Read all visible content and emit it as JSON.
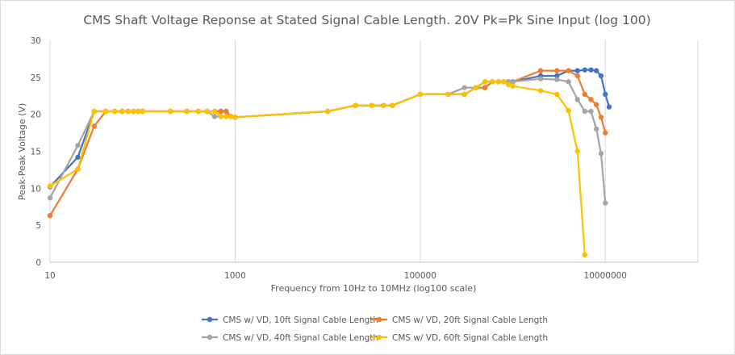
{
  "chart_data": {
    "type": "line",
    "title": "CMS Shaft Voltage Reponse at Stated Signal Cable Length. 20V Pk=Pk Sine Input (log 100)",
    "xlabel": "Frequency from 10Hz to 10MHz (log100 scale)",
    "ylabel": "Peak-Peak Voltage (V)",
    "xscale": "log100",
    "xlim": [
      10,
      100000000
    ],
    "ylim": [
      0,
      30
    ],
    "x_ticks": [
      10,
      1000,
      100000,
      10000000
    ],
    "x_tick_labels": [
      "10",
      "1000",
      "100000",
      "10000000"
    ],
    "y_ticks": [
      0,
      5,
      10,
      15,
      20,
      25,
      30
    ],
    "y_tick_labels": [
      "0",
      "5",
      "10",
      "15",
      "20",
      "25",
      "30"
    ],
    "grid": "vertical",
    "legend_position": "bottom",
    "series": [
      {
        "name": "CMS w/ VD, 10ft Signal Cable Length",
        "color": "#4472C4",
        "points": [
          [
            10,
            10.2
          ],
          [
            20,
            14.2
          ],
          [
            30,
            20.4
          ],
          [
            40,
            20.4
          ],
          [
            50,
            20.4
          ],
          [
            60,
            20.4
          ],
          [
            70,
            20.4
          ],
          [
            80,
            20.4
          ],
          [
            90,
            20.4
          ],
          [
            100,
            20.4
          ],
          [
            200,
            20.4
          ],
          [
            300,
            20.4
          ],
          [
            400,
            20.4
          ],
          [
            500,
            20.4
          ],
          [
            600,
            20.4
          ],
          [
            700,
            20.4
          ],
          [
            800,
            20.4
          ],
          [
            900,
            19.7
          ],
          [
            1000,
            19.6
          ],
          [
            10000,
            20.4
          ],
          [
            20000,
            21.2
          ],
          [
            30000,
            21.2
          ],
          [
            40000,
            21.2
          ],
          [
            50000,
            21.2
          ],
          [
            100000,
            22.7
          ],
          [
            200000,
            22.7
          ],
          [
            300000,
            22.7
          ],
          [
            400000,
            23.6
          ],
          [
            500000,
            23.6
          ],
          [
            600000,
            24.4
          ],
          [
            700000,
            24.4
          ],
          [
            800000,
            24.4
          ],
          [
            900000,
            24.4
          ],
          [
            1000000,
            24.4
          ],
          [
            2000000,
            25.2
          ],
          [
            3000000,
            25.2
          ],
          [
            4000000,
            25.9
          ],
          [
            5000000,
            25.9
          ],
          [
            6000000,
            26.0
          ],
          [
            7000000,
            26.0
          ],
          [
            8000000,
            25.9
          ],
          [
            9000000,
            25.2
          ],
          [
            10000000,
            22.7
          ],
          [
            11000000,
            21.0
          ]
        ]
      },
      {
        "name": "CMS w/ VD, 20ft Signal Cable Length",
        "color": "#ED7D31",
        "points": [
          [
            10,
            6.3
          ],
          [
            20,
            12.6
          ],
          [
            30,
            18.4
          ],
          [
            40,
            20.4
          ],
          [
            50,
            20.4
          ],
          [
            60,
            20.4
          ],
          [
            70,
            20.4
          ],
          [
            80,
            20.4
          ],
          [
            90,
            20.4
          ],
          [
            100,
            20.4
          ],
          [
            200,
            20.4
          ],
          [
            300,
            20.4
          ],
          [
            400,
            20.4
          ],
          [
            500,
            20.4
          ],
          [
            600,
            20.4
          ],
          [
            700,
            20.4
          ],
          [
            800,
            20.4
          ],
          [
            900,
            19.7
          ],
          [
            1000,
            19.6
          ],
          [
            10000,
            20.4
          ],
          [
            20000,
            21.2
          ],
          [
            30000,
            21.2
          ],
          [
            40000,
            21.2
          ],
          [
            50000,
            21.2
          ],
          [
            100000,
            22.7
          ],
          [
            200000,
            22.7
          ],
          [
            300000,
            22.7
          ],
          [
            400000,
            23.6
          ],
          [
            500000,
            23.6
          ],
          [
            600000,
            24.4
          ],
          [
            700000,
            24.4
          ],
          [
            800000,
            24.4
          ],
          [
            900000,
            24.4
          ],
          [
            1000000,
            24.4
          ],
          [
            2000000,
            25.9
          ],
          [
            3000000,
            25.9
          ],
          [
            4000000,
            25.9
          ],
          [
            5000000,
            25.2
          ],
          [
            6000000,
            22.7
          ],
          [
            7000000,
            22.0
          ],
          [
            8000000,
            21.3
          ],
          [
            9000000,
            19.6
          ],
          [
            10000000,
            17.5
          ]
        ]
      },
      {
        "name": "CMS w/ VD, 40ft Signal Cable Length",
        "color": "#A5A5A5",
        "points": [
          [
            10,
            8.7
          ],
          [
            20,
            15.8
          ],
          [
            30,
            20.4
          ],
          [
            40,
            20.4
          ],
          [
            50,
            20.4
          ],
          [
            60,
            20.4
          ],
          [
            70,
            20.4
          ],
          [
            80,
            20.4
          ],
          [
            90,
            20.4
          ],
          [
            100,
            20.4
          ],
          [
            200,
            20.4
          ],
          [
            300,
            20.4
          ],
          [
            400,
            20.4
          ],
          [
            500,
            20.4
          ],
          [
            600,
            19.7
          ],
          [
            700,
            19.7
          ],
          [
            800,
            19.7
          ],
          [
            900,
            19.7
          ],
          [
            1000,
            19.6
          ],
          [
            10000,
            20.4
          ],
          [
            20000,
            21.2
          ],
          [
            30000,
            21.2
          ],
          [
            40000,
            21.2
          ],
          [
            50000,
            21.2
          ],
          [
            100000,
            22.7
          ],
          [
            200000,
            22.7
          ],
          [
            300000,
            23.6
          ],
          [
            400000,
            23.6
          ],
          [
            500000,
            24.4
          ],
          [
            600000,
            24.4
          ],
          [
            700000,
            24.4
          ],
          [
            800000,
            24.4
          ],
          [
            900000,
            24.4
          ],
          [
            1000000,
            24.4
          ],
          [
            2000000,
            24.8
          ],
          [
            3000000,
            24.7
          ],
          [
            4000000,
            24.4
          ],
          [
            5000000,
            22.0
          ],
          [
            6000000,
            20.4
          ],
          [
            7000000,
            20.4
          ],
          [
            8000000,
            18.0
          ],
          [
            9000000,
            14.7
          ],
          [
            10000000,
            8.0
          ]
        ]
      },
      {
        "name": "CMS w/ VD, 60ft Signal Cable Length",
        "color": "#FFC000",
        "points": [
          [
            10,
            10.3
          ],
          [
            20,
            12.6
          ],
          [
            30,
            20.4
          ],
          [
            40,
            20.4
          ],
          [
            50,
            20.4
          ],
          [
            60,
            20.4
          ],
          [
            70,
            20.4
          ],
          [
            80,
            20.4
          ],
          [
            90,
            20.4
          ],
          [
            100,
            20.4
          ],
          [
            200,
            20.4
          ],
          [
            300,
            20.4
          ],
          [
            400,
            20.4
          ],
          [
            500,
            20.4
          ],
          [
            600,
            20.4
          ],
          [
            700,
            19.7
          ],
          [
            800,
            19.7
          ],
          [
            900,
            19.7
          ],
          [
            1000,
            19.6
          ],
          [
            10000,
            20.4
          ],
          [
            20000,
            21.2
          ],
          [
            30000,
            21.2
          ],
          [
            40000,
            21.2
          ],
          [
            50000,
            21.2
          ],
          [
            100000,
            22.7
          ],
          [
            200000,
            22.7
          ],
          [
            300000,
            22.7
          ],
          [
            400000,
            23.6
          ],
          [
            500000,
            24.4
          ],
          [
            600000,
            24.4
          ],
          [
            700000,
            24.4
          ],
          [
            800000,
            24.4
          ],
          [
            900000,
            24.0
          ],
          [
            1000000,
            23.8
          ],
          [
            2000000,
            23.2
          ],
          [
            3000000,
            22.7
          ],
          [
            4000000,
            20.5
          ],
          [
            5000000,
            15.0
          ],
          [
            6000000,
            1.0
          ]
        ]
      }
    ]
  }
}
